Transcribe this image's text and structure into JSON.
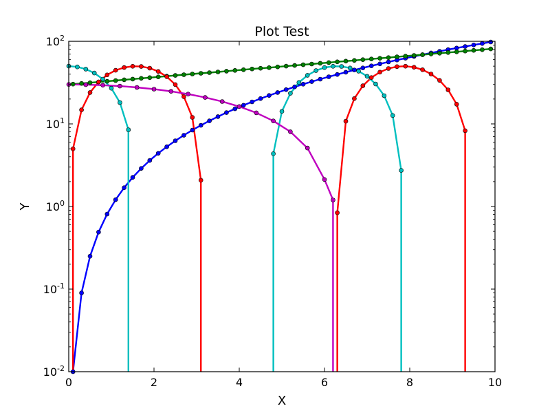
{
  "chart_data": {
    "type": "line",
    "title": "Plot Test",
    "xlabel": "X",
    "ylabel": "Y",
    "xlim": [
      0,
      10
    ],
    "ylim": [
      0.01,
      100
    ],
    "yscale": "log",
    "grid": false,
    "x_ticks": [
      {
        "value": 0,
        "label": "0"
      },
      {
        "value": 2,
        "label": "2"
      },
      {
        "value": 4,
        "label": "4"
      },
      {
        "value": 6,
        "label": "6"
      },
      {
        "value": 8,
        "label": "8"
      },
      {
        "value": 10,
        "label": "10"
      }
    ],
    "y_ticks": [
      {
        "value": 0.01,
        "base": "10",
        "exp": "-2"
      },
      {
        "value": 0.1,
        "base": "10",
        "exp": "-1"
      },
      {
        "value": 1,
        "base": "10",
        "exp": "0"
      },
      {
        "value": 10,
        "base": "10",
        "exp": "1"
      },
      {
        "value": 100,
        "base": "10",
        "exp": "2"
      }
    ],
    "series": [
      {
        "color": "#0000ff",
        "function": "y = x^2",
        "x": [
          0.1,
          0.3,
          0.5,
          0.7,
          0.9,
          1.1,
          1.3,
          1.5,
          1.7,
          1.9,
          2.1,
          2.3,
          2.5,
          2.7,
          2.9,
          3.1,
          3.3,
          3.5,
          3.7,
          3.9,
          4.1,
          4.3,
          4.5,
          4.7,
          4.9,
          5.1,
          5.3,
          5.5,
          5.7,
          5.9,
          6.1,
          6.3,
          6.5,
          6.7,
          6.9,
          7.1,
          7.3,
          7.5,
          7.7,
          7.9,
          8.1,
          8.3,
          8.5,
          8.7,
          8.9,
          9.1,
          9.3,
          9.5,
          9.7,
          9.9
        ],
        "y": [
          0.01,
          0.09,
          0.25,
          0.49,
          0.81,
          1.21,
          1.69,
          2.25,
          2.89,
          3.61,
          4.41,
          5.29,
          6.25,
          7.29,
          8.41,
          9.61,
          10.89,
          12.25,
          13.69,
          15.21,
          16.81,
          18.49,
          20.25,
          22.09,
          24.01,
          26.01,
          28.09,
          30.25,
          32.49,
          34.81,
          37.21,
          39.69,
          42.25,
          44.89,
          47.61,
          50.41,
          53.29,
          56.25,
          59.29,
          62.41,
          65.61,
          68.89,
          72.25,
          75.69,
          79.21,
          82.81,
          86.49,
          90.25,
          94.09,
          98.01
        ]
      },
      {
        "color": "#008000",
        "function": "y = 30 * e^(x/10)",
        "x": [
          0.1,
          0.3,
          0.5,
          0.7,
          0.9,
          1.1,
          1.3,
          1.5,
          1.7,
          1.9,
          2.1,
          2.3,
          2.5,
          2.7,
          2.9,
          3.1,
          3.3,
          3.5,
          3.7,
          3.9,
          4.1,
          4.3,
          4.5,
          4.7,
          4.9,
          5.1,
          5.3,
          5.5,
          5.7,
          5.9,
          6.1,
          6.3,
          6.5,
          6.7,
          6.9,
          7.1,
          7.3,
          7.5,
          7.7,
          7.9,
          8.1,
          8.3,
          8.5,
          8.7,
          8.9,
          9.1,
          9.3,
          9.5,
          9.7,
          9.9
        ],
        "y": [
          30.3,
          30.9,
          31.5,
          32.2,
          32.8,
          33.5,
          34.2,
          34.9,
          35.6,
          36.3,
          37.1,
          37.8,
          38.6,
          39.4,
          40.2,
          41.0,
          41.8,
          42.6,
          43.5,
          44.4,
          45.3,
          46.2,
          47.1,
          48.0,
          49.0,
          50.0,
          51.0,
          52.0,
          53.1,
          54.2,
          55.3,
          56.4,
          57.5,
          58.7,
          59.9,
          61.1,
          62.3,
          63.5,
          64.8,
          66.1,
          67.5,
          68.8,
          70.2,
          71.7,
          73.1,
          74.6,
          76.1,
          77.6,
          79.2,
          80.8
        ]
      },
      {
        "color": "#ff0000",
        "function": "y = 50 * sin(x)",
        "x": [
          0.1,
          0.3,
          0.5,
          0.7,
          0.9,
          1.1,
          1.3,
          1.5,
          1.7,
          1.9,
          2.1,
          2.3,
          2.5,
          2.7,
          2.9,
          3.1,
          6.3,
          6.5,
          6.7,
          6.9,
          7.1,
          7.3,
          7.5,
          7.7,
          7.9,
          8.1,
          8.3,
          8.5,
          8.7,
          8.9,
          9.1,
          9.3
        ],
        "y": [
          4.99,
          14.78,
          23.97,
          32.21,
          39.17,
          44.56,
          48.18,
          49.87,
          49.58,
          47.31,
          43.16,
          37.28,
          29.92,
          21.38,
          11.99,
          2.08,
          0.84,
          10.77,
          20.28,
          28.95,
          36.4,
          42.31,
          46.9,
          49.4,
          49.96,
          48.54,
          45.23,
          40.19,
          33.62,
          25.87,
          17.3,
          8.27
        ],
        "markers": "every other sample"
      },
      {
        "color": "#00bfbf",
        "function": "y = 50 * cos(x)",
        "x": [
          0.0,
          0.2,
          0.4,
          0.6,
          0.8,
          1.0,
          1.2,
          1.4,
          4.8,
          5.0,
          5.2,
          5.4,
          5.6,
          5.8,
          6.0,
          6.2,
          6.4,
          6.6,
          6.8,
          7.0,
          7.2,
          7.4,
          7.6,
          7.8
        ],
        "y": [
          50,
          49.0,
          46.05,
          41.27,
          34.84,
          27.02,
          18.12,
          8.5,
          4.36,
          14.18,
          23.42,
          31.75,
          38.77,
          44.25,
          48.01,
          49.83,
          49.66,
          47.52,
          43.48,
          37.7,
          30.43,
          21.96,
          12.63,
          2.74
        ]
      },
      {
        "color": "#bf00bf",
        "function": "y = 30 * cos(x/4)",
        "x": [
          0.0,
          0.4,
          0.8,
          1.2,
          1.6,
          2.0,
          2.4,
          2.8,
          3.2,
          3.6,
          4.0,
          4.4,
          4.8,
          5.2,
          5.6,
          6.0,
          6.2
        ],
        "y": [
          30,
          29.85,
          29.4,
          28.66,
          27.63,
          26.33,
          24.77,
          22.95,
          20.9,
          18.65,
          16.21,
          13.62,
          10.87,
          8.03,
          5.1,
          2.12,
          1.2
        ]
      }
    ]
  }
}
